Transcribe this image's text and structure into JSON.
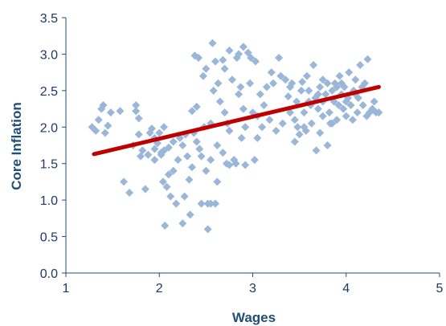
{
  "chart_data": {
    "type": "scatter",
    "xlabel": "Wages",
    "ylabel": "Core Inflation",
    "xlim": [
      1,
      5
    ],
    "ylim": [
      0,
      3.5
    ],
    "x_ticks": [
      "1",
      "2",
      "3",
      "4",
      "5"
    ],
    "y_ticks": [
      "0.0",
      "0.5",
      "1.0",
      "1.5",
      "2.0",
      "2.5",
      "3.0",
      "3.5"
    ],
    "grid": false,
    "legend": "none",
    "colors": {
      "points": "#9ab6d8",
      "trend": "#c00000",
      "axis": "#1f4e79",
      "text": "#1f3864"
    },
    "trendline": {
      "x": [
        1.3,
        4.35
      ],
      "y": [
        1.63,
        2.55
      ]
    },
    "points": [
      [
        1.28,
        2.0
      ],
      [
        1.32,
        1.95
      ],
      [
        1.35,
        2.1
      ],
      [
        1.38,
        2.25
      ],
      [
        1.4,
        2.3
      ],
      [
        1.42,
        1.92
      ],
      [
        1.45,
        2.02
      ],
      [
        1.48,
        2.2
      ],
      [
        1.58,
        2.22
      ],
      [
        1.62,
        1.25
      ],
      [
        1.68,
        1.1
      ],
      [
        1.72,
        1.75
      ],
      [
        1.75,
        2.22
      ],
      [
        1.75,
        2.3
      ],
      [
        1.78,
        2.12
      ],
      [
        1.78,
        1.9
      ],
      [
        1.8,
        1.6
      ],
      [
        1.82,
        1.68
      ],
      [
        1.85,
        1.15
      ],
      [
        1.88,
        1.62
      ],
      [
        1.9,
        1.92
      ],
      [
        1.92,
        1.98
      ],
      [
        1.95,
        1.55
      ],
      [
        1.95,
        1.7
      ],
      [
        1.98,
        1.78
      ],
      [
        2.0,
        1.92
      ],
      [
        2.02,
        1.62
      ],
      [
        2.02,
        1.65
      ],
      [
        2.04,
        1.25
      ],
      [
        2.05,
        1.68
      ],
      [
        2.05,
        2.0
      ],
      [
        2.06,
        0.65
      ],
      [
        2.08,
        1.18
      ],
      [
        2.1,
        1.35
      ],
      [
        2.1,
        1.72
      ],
      [
        2.12,
        1.05
      ],
      [
        2.15,
        1.8
      ],
      [
        2.18,
        0.95
      ],
      [
        2.2,
        1.55
      ],
      [
        2.22,
        1.85
      ],
      [
        2.25,
        1.75
      ],
      [
        2.25,
        0.68
      ],
      [
        2.27,
        1.05
      ],
      [
        2.3,
        1.6
      ],
      [
        2.32,
        1.28
      ],
      [
        2.33,
        0.8
      ],
      [
        2.35,
        2.22
      ],
      [
        2.37,
        1.92
      ],
      [
        2.38,
        2.98
      ],
      [
        2.4,
        2.28
      ],
      [
        2.42,
        2.95
      ],
      [
        2.43,
        1.7
      ],
      [
        2.45,
        0.95
      ],
      [
        2.47,
        2.7
      ],
      [
        2.48,
        2.0
      ],
      [
        2.5,
        1.4
      ],
      [
        2.5,
        2.8
      ],
      [
        2.52,
        0.95
      ],
      [
        2.52,
        0.6
      ],
      [
        2.55,
        2.05
      ],
      [
        2.55,
        0.95
      ],
      [
        2.57,
        3.15
      ],
      [
        2.58,
        2.5
      ],
      [
        2.6,
        0.95
      ],
      [
        2.6,
        2.9
      ],
      [
        2.62,
        1.25
      ],
      [
        2.63,
        2.6
      ],
      [
        2.65,
        2.35
      ],
      [
        2.68,
        1.65
      ],
      [
        2.68,
        2.92
      ],
      [
        2.7,
        2.2
      ],
      [
        2.7,
        2.8
      ],
      [
        2.72,
        1.5
      ],
      [
        2.73,
        2.05
      ],
      [
        2.75,
        3.05
      ],
      [
        2.75,
        1.48
      ],
      [
        2.78,
        2.65
      ],
      [
        2.8,
        1.55
      ],
      [
        2.82,
        1.5
      ],
      [
        2.83,
        2.95
      ],
      [
        2.85,
        3.0
      ],
      [
        2.85,
        2.45
      ],
      [
        2.87,
        2.55
      ],
      [
        2.88,
        1.85
      ],
      [
        2.9,
        3.1
      ],
      [
        2.9,
        2.25
      ],
      [
        2.92,
        2.0
      ],
      [
        2.92,
        1.48
      ],
      [
        2.95,
        3.02
      ],
      [
        2.97,
        2.6
      ],
      [
        2.98,
        2.95
      ],
      [
        3.0,
        2.2
      ],
      [
        3.02,
        1.55
      ],
      [
        3.03,
        2.9
      ],
      [
        3.05,
        1.85
      ],
      [
        3.05,
        2.15
      ],
      [
        3.08,
        2.45
      ],
      [
        3.1,
        2.0
      ],
      [
        3.12,
        2.3
      ],
      [
        3.15,
        2.55
      ],
      [
        3.18,
        2.1
      ],
      [
        3.2,
        2.75
      ],
      [
        3.22,
        2.6
      ],
      [
        3.25,
        1.95
      ],
      [
        3.28,
        2.95
      ],
      [
        3.3,
        2.7
      ],
      [
        3.32,
        2.05
      ],
      [
        3.35,
        2.65
      ],
      [
        3.38,
        2.42
      ],
      [
        3.4,
        2.2
      ],
      [
        3.42,
        2.6
      ],
      [
        3.45,
        2.1
      ],
      [
        3.45,
        1.8
      ],
      [
        3.47,
        2.35
      ],
      [
        3.48,
        2.0
      ],
      [
        3.5,
        1.9
      ],
      [
        3.52,
        2.5
      ],
      [
        3.53,
        2.62
      ],
      [
        3.55,
        2.2
      ],
      [
        3.57,
        1.95
      ],
      [
        3.58,
        2.7
      ],
      [
        3.6,
        2.5
      ],
      [
        3.62,
        2.3
      ],
      [
        3.63,
        2.05
      ],
      [
        3.65,
        2.85
      ],
      [
        3.67,
        2.4
      ],
      [
        3.68,
        1.68
      ],
      [
        3.7,
        2.25
      ],
      [
        3.72,
        2.55
      ],
      [
        3.72,
        1.92
      ],
      [
        3.75,
        2.65
      ],
      [
        3.75,
        2.15
      ],
      [
        3.78,
        2.45
      ],
      [
        3.8,
        1.75
      ],
      [
        3.8,
        2.6
      ],
      [
        3.82,
        2.2
      ],
      [
        3.83,
        2.05
      ],
      [
        3.85,
        2.5
      ],
      [
        3.87,
        2.35
      ],
      [
        3.88,
        2.6
      ],
      [
        3.9,
        2.1
      ],
      [
        3.92,
        2.3
      ],
      [
        3.93,
        2.7
      ],
      [
        3.95,
        2.45
      ],
      [
        3.97,
        2.25
      ],
      [
        3.98,
        2.55
      ],
      [
        4.0,
        2.15
      ],
      [
        4.02,
        2.4
      ],
      [
        4.03,
        2.75
      ],
      [
        4.05,
        2.3
      ],
      [
        4.07,
        2.1
      ],
      [
        4.08,
        2.5
      ],
      [
        4.1,
        2.65
      ],
      [
        4.12,
        2.2
      ],
      [
        4.13,
        2.4
      ],
      [
        4.15,
        2.85
      ],
      [
        4.17,
        2.55
      ],
      [
        4.18,
        2.3
      ],
      [
        4.2,
        2.6
      ],
      [
        4.22,
        2.15
      ],
      [
        4.23,
        2.93
      ],
      [
        4.25,
        2.2
      ],
      [
        4.28,
        2.25
      ],
      [
        4.3,
        2.35
      ],
      [
        4.32,
        2.2
      ],
      [
        4.35,
        2.2
      ],
      [
        3.6,
        2.35
      ],
      [
        3.85,
        2.05
      ],
      [
        4.0,
        2.35
      ],
      [
        3.7,
        2.45
      ],
      [
        3.95,
        2.6
      ],
      [
        2.35,
        1.45
      ],
      [
        2.45,
        1.6
      ],
      [
        2.15,
        1.4
      ],
      [
        2.28,
        1.9
      ],
      [
        2.4,
        1.8
      ],
      [
        1.95,
        1.85
      ],
      [
        2.62,
        1.75
      ],
      [
        2.75,
        1.95
      ],
      [
        2.55,
        1.55
      ],
      [
        3.4,
        2.55
      ],
      [
        3.55,
        2.0
      ],
      [
        3.75,
        2.35
      ],
      [
        4.1,
        2.45
      ],
      [
        3.9,
        2.55
      ]
    ]
  }
}
